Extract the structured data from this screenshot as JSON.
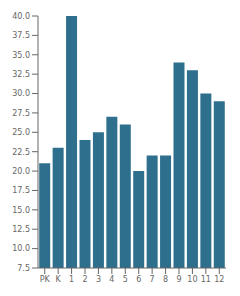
{
  "chart_data": {
    "type": "bar",
    "categories": [
      "PK",
      "K",
      "1",
      "2",
      "3",
      "4",
      "5",
      "6",
      "7",
      "8",
      "9",
      "10",
      "11",
      "12"
    ],
    "values": [
      21,
      23,
      40,
      24,
      25,
      27,
      26,
      20,
      22,
      22,
      34,
      33,
      30,
      29
    ],
    "color": "#2e6f8e",
    "ylim": [
      7.5,
      40
    ],
    "yticks": [
      7.5,
      {
        "value": 10,
        "label": "10.0"
      },
      12.5,
      {
        "value": 15,
        "label": "15.0"
      },
      17.5,
      {
        "value": 20,
        "label": "20.0"
      },
      22.5,
      {
        "value": 25,
        "label": "25.0"
      },
      27.5,
      {
        "value": 30,
        "label": "30.0"
      },
      32.5,
      {
        "value": 35,
        "label": "35.0"
      },
      37.5,
      {
        "value": 40,
        "label": "40.0"
      }
    ],
    "grid": false
  }
}
